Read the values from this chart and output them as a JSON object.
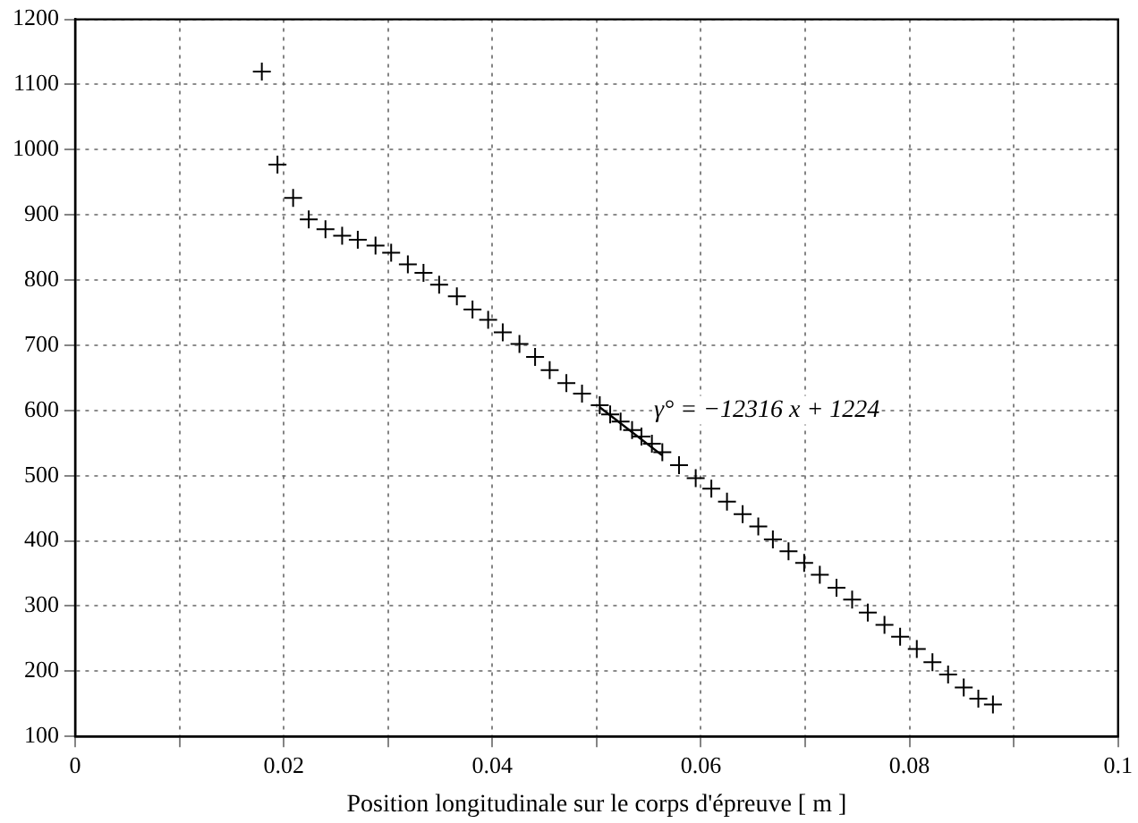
{
  "chart_data": {
    "type": "scatter",
    "xlabel": "Position longitudinale sur le corps d'épreuve [ m ]",
    "series": [
      {
        "marker": "cross",
        "color": "#000000",
        "x": [
          0.0179,
          0.0194,
          0.0209,
          0.0224,
          0.024,
          0.0256,
          0.0271,
          0.0288,
          0.0303,
          0.0319,
          0.0334,
          0.0349,
          0.0366,
          0.0381,
          0.0396,
          0.041,
          0.0426,
          0.0441,
          0.0455,
          0.0471,
          0.0486,
          0.0503,
          0.0513,
          0.0523,
          0.0534,
          0.0543,
          0.0553,
          0.0563,
          0.0579,
          0.0595,
          0.061,
          0.0625,
          0.064,
          0.0655,
          0.0669,
          0.0684,
          0.0699,
          0.0714,
          0.073,
          0.0745,
          0.076,
          0.0776,
          0.0791,
          0.0807,
          0.0822,
          0.0837,
          0.0852,
          0.0866,
          0.088
        ],
        "values": [
          1120,
          977,
          926,
          893,
          878,
          868,
          862,
          853,
          842,
          824,
          811,
          793,
          775,
          755,
          739,
          720,
          702,
          682,
          662,
          642,
          626,
          608,
          594,
          583,
          570,
          560,
          549,
          536,
          516,
          496,
          480,
          460,
          441,
          422,
          402,
          384,
          366,
          348,
          328,
          310,
          290,
          271,
          253,
          234,
          214,
          195,
          175,
          158,
          149
        ]
      },
      {
        "type": "line",
        "marker": "none",
        "color": "#000000",
        "x": [
          0.0503,
          0.0563
        ],
        "values": [
          605,
          531
        ]
      }
    ],
    "xlim": [
      0,
      0.1
    ],
    "ylim": [
      100,
      1200
    ],
    "xticks": [
      0,
      {
        "value": 0.01,
        "label": null
      },
      0.02,
      {
        "value": 0.03,
        "label": null
      },
      0.04,
      {
        "value": 0.05,
        "label": null
      },
      0.06,
      {
        "value": 0.07,
        "label": null
      },
      0.08,
      {
        "value": 0.09,
        "label": null
      },
      0.1
    ],
    "yticks": [
      100,
      200,
      300,
      400,
      500,
      600,
      700,
      800,
      900,
      1000,
      1100,
      1200
    ],
    "grid": true,
    "legend": false,
    "annotations": [
      "γ° = −12316 x + 1224"
    ]
  }
}
